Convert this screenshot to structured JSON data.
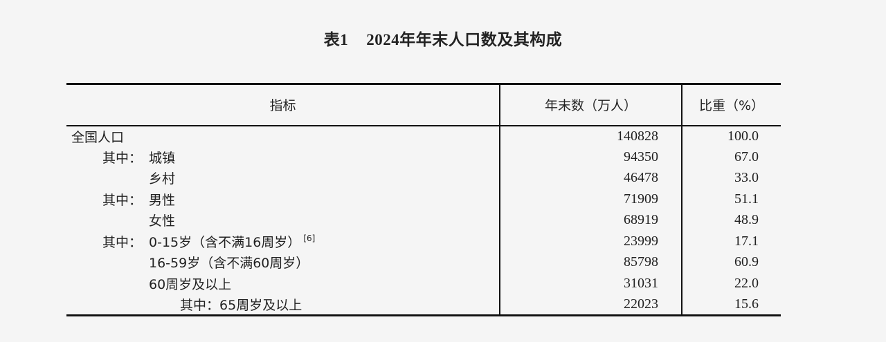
{
  "title": {
    "number": "表1",
    "text": "2024年年末人口数及其构成"
  },
  "headers": [
    "指标",
    "年末数（万人）",
    "比重（%）"
  ],
  "rows": [
    {
      "prefix": "",
      "label": "全国人口",
      "note": "",
      "value": "140828",
      "share": "100.0",
      "level": 0
    },
    {
      "prefix": "其中：",
      "label": "城镇",
      "note": "",
      "value": "94350",
      "share": "67.0",
      "level": 1
    },
    {
      "prefix": "",
      "label": "乡村",
      "note": "",
      "value": "46478",
      "share": "33.0",
      "level": 2
    },
    {
      "prefix": "其中：",
      "label": "男性",
      "note": "",
      "value": "71909",
      "share": "51.1",
      "level": 1
    },
    {
      "prefix": "",
      "label": "女性",
      "note": "",
      "value": "68919",
      "share": "48.9",
      "level": 2
    },
    {
      "prefix": "其中：",
      "label": "0-15岁（含不满16周岁）",
      "note": "[6]",
      "value": "23999",
      "share": "17.1",
      "level": 1
    },
    {
      "prefix": "",
      "label": "16-59岁（含不满60周岁）",
      "note": "",
      "value": "85798",
      "share": "60.9",
      "level": 2
    },
    {
      "prefix": "",
      "label": "60周岁及以上",
      "note": "",
      "value": "31031",
      "share": "22.0",
      "level": 2
    },
    {
      "prefix": "其中：",
      "label": "65周岁及以上",
      "note": "",
      "value": "22023",
      "share": "15.6",
      "level": 3
    }
  ]
}
